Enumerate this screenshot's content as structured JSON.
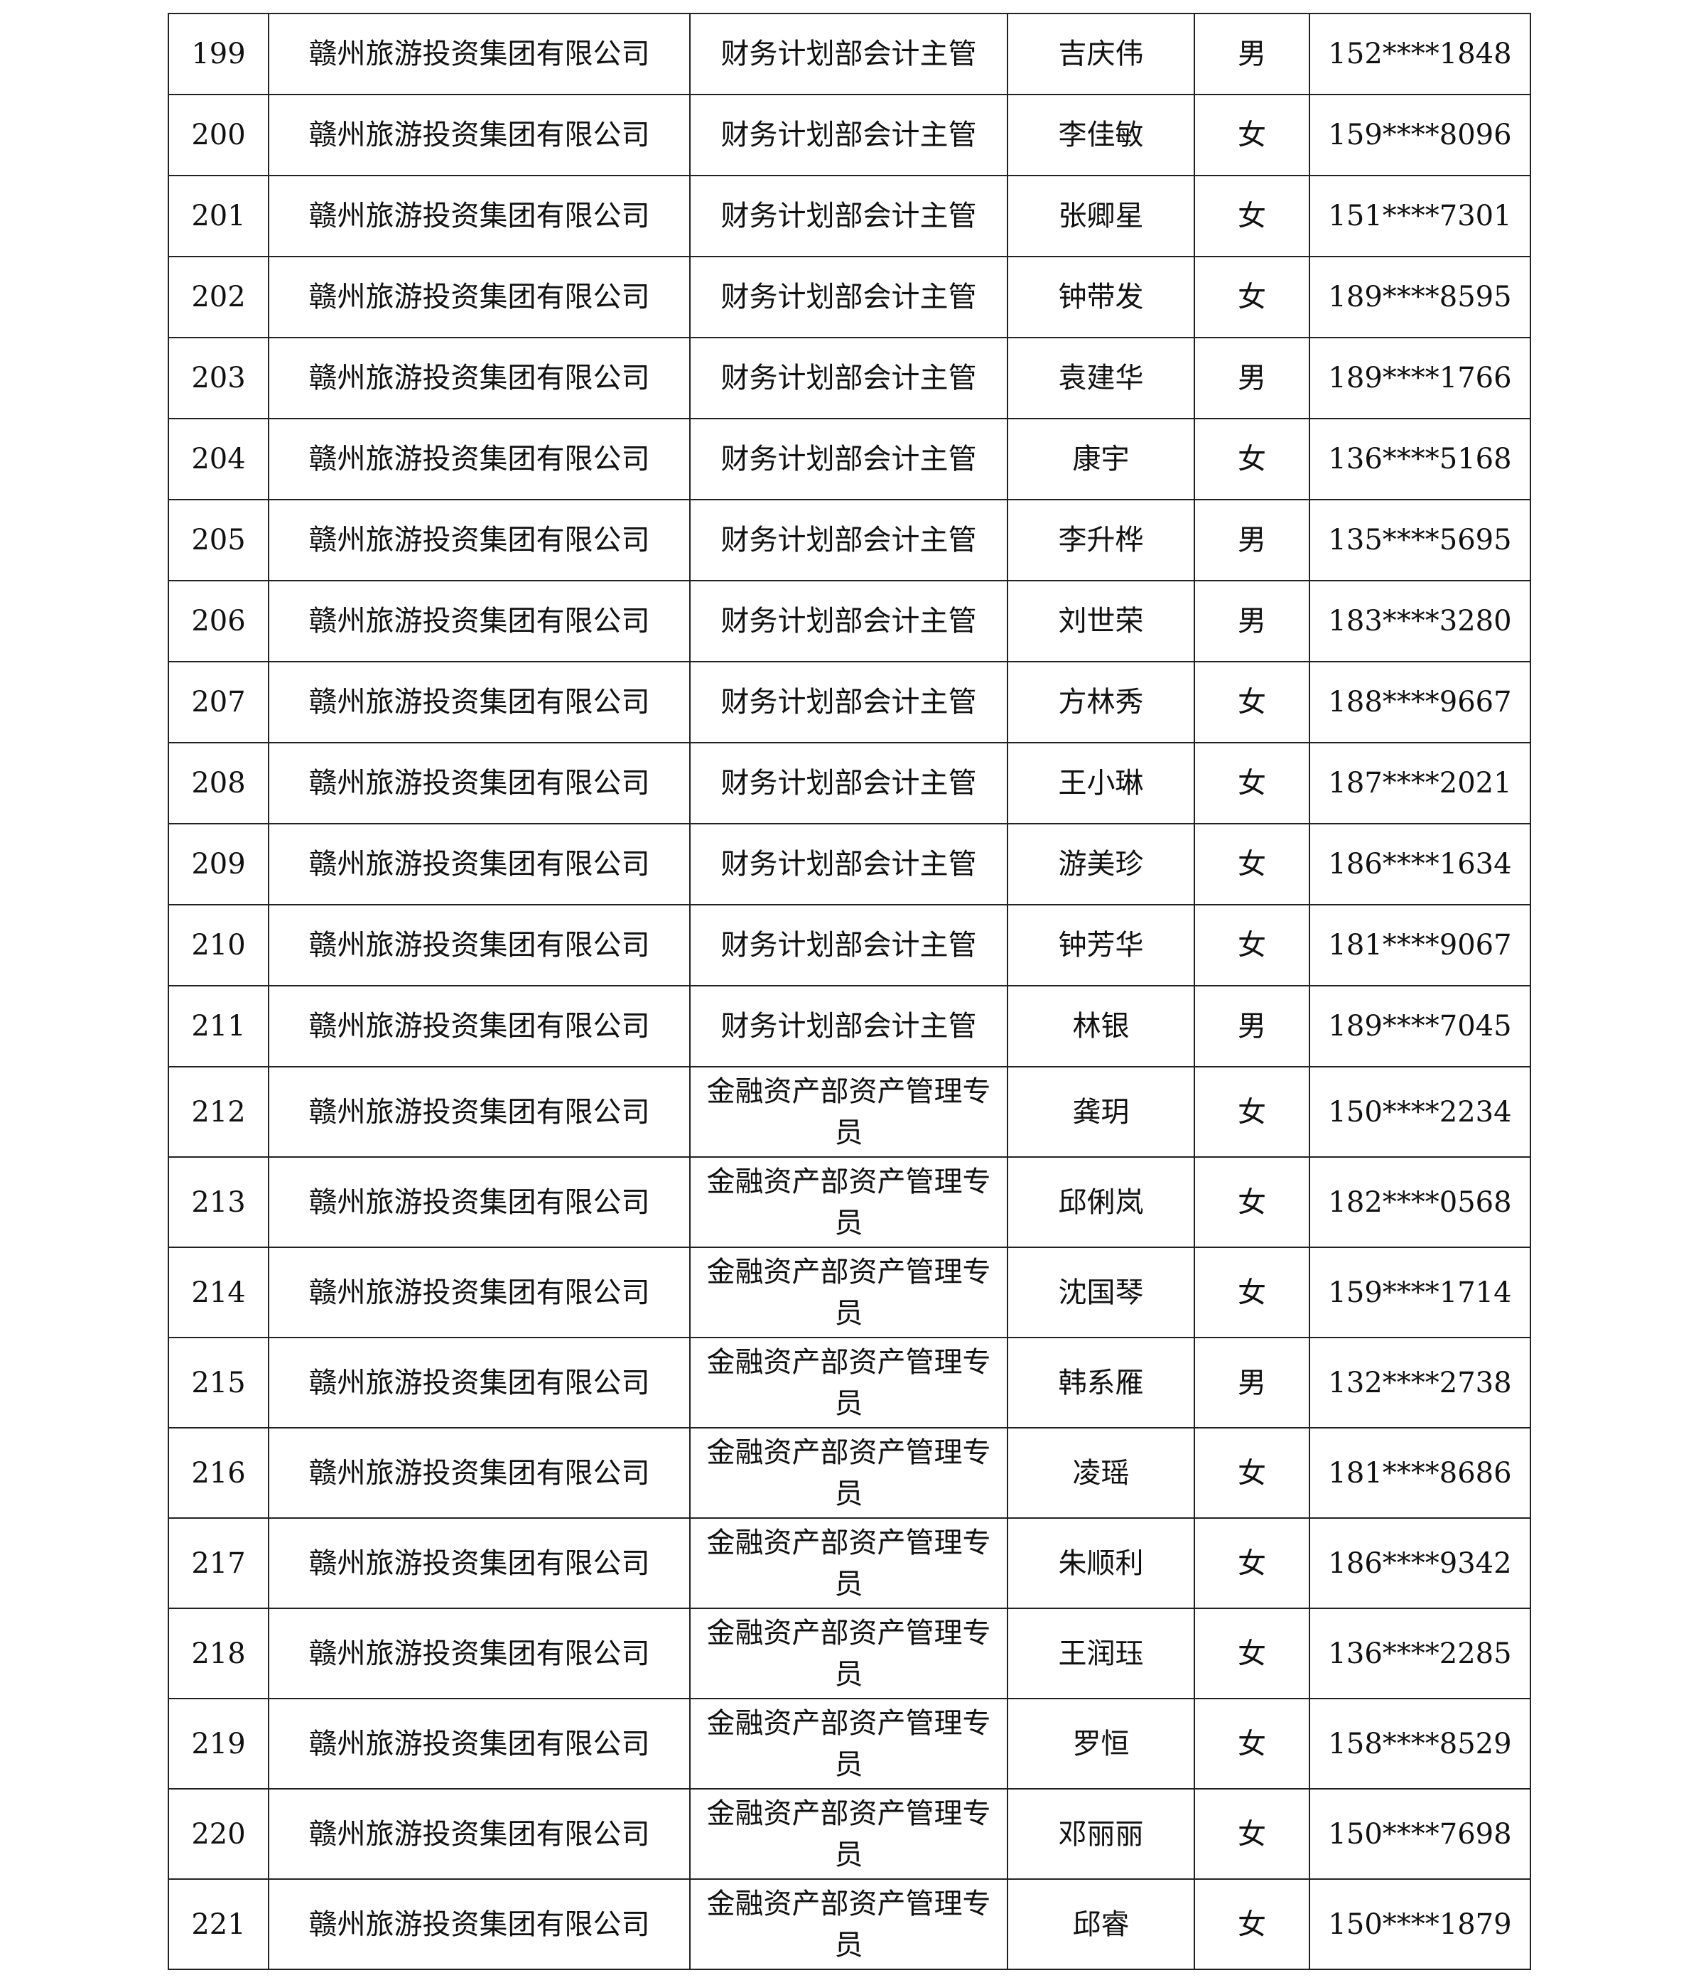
{
  "rows": [
    {
      "no": "199",
      "company": "赣州旅游投资集团有限公司",
      "position": "财务计划部会计主管",
      "name": "吉庆伟",
      "gender": "男",
      "phone": "152****1848"
    },
    {
      "no": "200",
      "company": "赣州旅游投资集团有限公司",
      "position": "财务计划部会计主管",
      "name": "李佳敏",
      "gender": "女",
      "phone": "159****8096"
    },
    {
      "no": "201",
      "company": "赣州旅游投资集团有限公司",
      "position": "财务计划部会计主管",
      "name": "张卿星",
      "gender": "女",
      "phone": "151****7301"
    },
    {
      "no": "202",
      "company": "赣州旅游投资集团有限公司",
      "position": "财务计划部会计主管",
      "name": "钟带发",
      "gender": "女",
      "phone": "189****8595"
    },
    {
      "no": "203",
      "company": "赣州旅游投资集团有限公司",
      "position": "财务计划部会计主管",
      "name": "袁建华",
      "gender": "男",
      "phone": "189****1766"
    },
    {
      "no": "204",
      "company": "赣州旅游投资集团有限公司",
      "position": "财务计划部会计主管",
      "name": "康宇",
      "gender": "女",
      "phone": "136****5168"
    },
    {
      "no": "205",
      "company": "赣州旅游投资集团有限公司",
      "position": "财务计划部会计主管",
      "name": "李升桦",
      "gender": "男",
      "phone": "135****5695"
    },
    {
      "no": "206",
      "company": "赣州旅游投资集团有限公司",
      "position": "财务计划部会计主管",
      "name": "刘世荣",
      "gender": "男",
      "phone": "183****3280"
    },
    {
      "no": "207",
      "company": "赣州旅游投资集团有限公司",
      "position": "财务计划部会计主管",
      "name": "方林秀",
      "gender": "女",
      "phone": "188****9667"
    },
    {
      "no": "208",
      "company": "赣州旅游投资集团有限公司",
      "position": "财务计划部会计主管",
      "name": "王小琳",
      "gender": "女",
      "phone": "187****2021"
    },
    {
      "no": "209",
      "company": "赣州旅游投资集团有限公司",
      "position": "财务计划部会计主管",
      "name": "游美珍",
      "gender": "女",
      "phone": "186****1634"
    },
    {
      "no": "210",
      "company": "赣州旅游投资集团有限公司",
      "position": "财务计划部会计主管",
      "name": "钟芳华",
      "gender": "女",
      "phone": "181****9067"
    },
    {
      "no": "211",
      "company": "赣州旅游投资集团有限公司",
      "position": "财务计划部会计主管",
      "name": "林银",
      "gender": "男",
      "phone": "189****7045"
    },
    {
      "no": "212",
      "company": "赣州旅游投资集团有限公司",
      "position": "金融资产部资产管理专员",
      "name": "龚玥",
      "gender": "女",
      "phone": "150****2234"
    },
    {
      "no": "213",
      "company": "赣州旅游投资集团有限公司",
      "position": "金融资产部资产管理专员",
      "name": "邱俐岚",
      "gender": "女",
      "phone": "182****0568"
    },
    {
      "no": "214",
      "company": "赣州旅游投资集团有限公司",
      "position": "金融资产部资产管理专员",
      "name": "沈国琴",
      "gender": "女",
      "phone": "159****1714"
    },
    {
      "no": "215",
      "company": "赣州旅游投资集团有限公司",
      "position": "金融资产部资产管理专员",
      "name": "韩系雁",
      "gender": "男",
      "phone": "132****2738"
    },
    {
      "no": "216",
      "company": "赣州旅游投资集团有限公司",
      "position": "金融资产部资产管理专员",
      "name": "凌瑶",
      "gender": "女",
      "phone": "181****8686"
    },
    {
      "no": "217",
      "company": "赣州旅游投资集团有限公司",
      "position": "金融资产部资产管理专员",
      "name": "朱顺利",
      "gender": "女",
      "phone": "186****9342"
    },
    {
      "no": "218",
      "company": "赣州旅游投资集团有限公司",
      "position": "金融资产部资产管理专员",
      "name": "王润珏",
      "gender": "女",
      "phone": "136****2285"
    },
    {
      "no": "219",
      "company": "赣州旅游投资集团有限公司",
      "position": "金融资产部资产管理专员",
      "name": "罗恒",
      "gender": "女",
      "phone": "158****8529"
    },
    {
      "no": "220",
      "company": "赣州旅游投资集团有限公司",
      "position": "金融资产部资产管理专员",
      "name": "邓丽丽",
      "gender": "女",
      "phone": "150****7698"
    },
    {
      "no": "221",
      "company": "赣州旅游投资集团有限公司",
      "position": "金融资产部资产管理专员",
      "name": "邱睿",
      "gender": "女",
      "phone": "150****1879"
    }
  ]
}
